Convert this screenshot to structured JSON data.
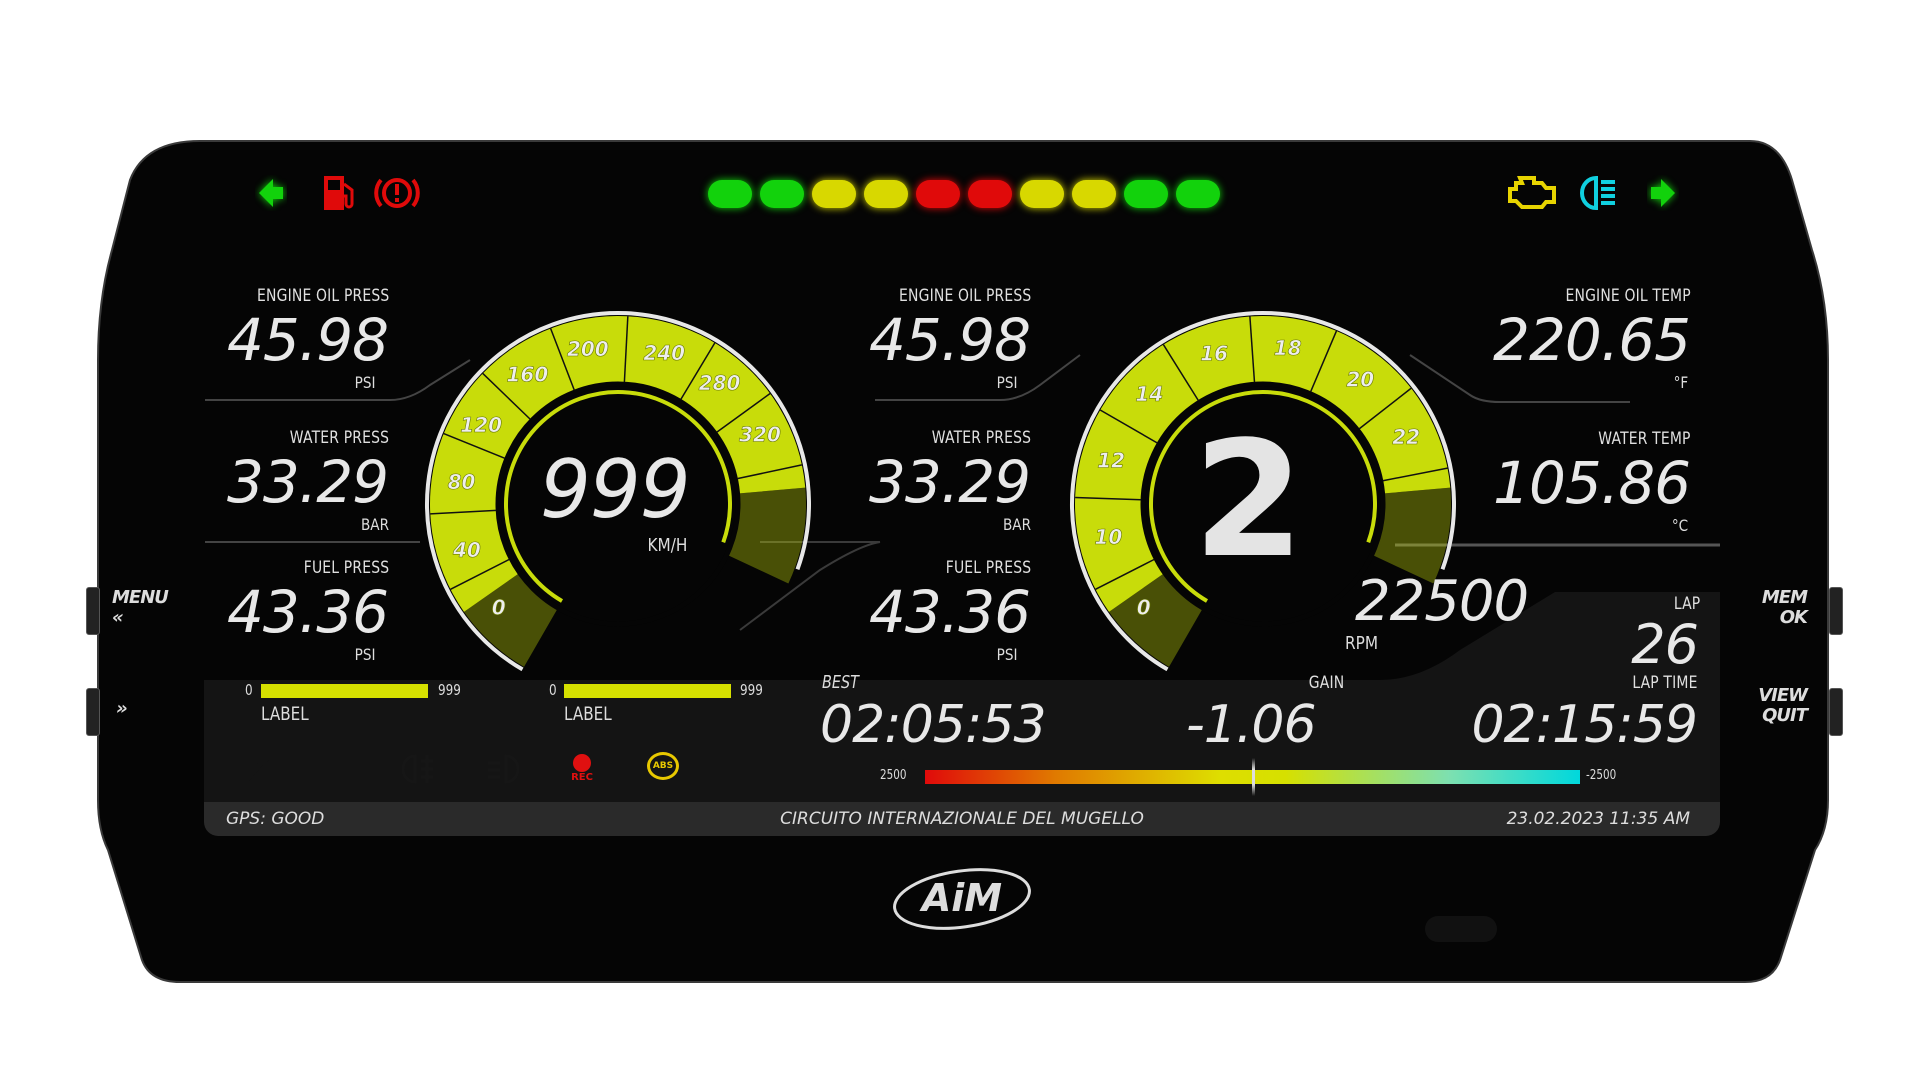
{
  "top_icons": {
    "left": [
      "turn-left-arrow-icon",
      "low-fuel-icon",
      "brake-warning-icon"
    ],
    "right": [
      "check-engine-icon",
      "high-beam-icon",
      "turn-right-arrow-icon"
    ]
  },
  "shift_lights": [
    "#12d20c",
    "#12d20c",
    "#d8d800",
    "#d8d800",
    "#e00a0a",
    "#e00a0a",
    "#d8d800",
    "#d8d800",
    "#12d20c",
    "#12d20c"
  ],
  "left_column": [
    {
      "label": "ENGINE OIL PRESS",
      "value": "45.98",
      "unit": "PSI"
    },
    {
      "label": "WATER PRESS",
      "value": "33.29",
      "unit": "BAR"
    },
    {
      "label": "FUEL PRESS",
      "value": "43.36",
      "unit": "PSI"
    }
  ],
  "center_column": [
    {
      "label": "ENGINE OIL PRESS",
      "value": "45.98",
      "unit": "PSI"
    },
    {
      "label": "WATER PRESS",
      "value": "33.29",
      "unit": "BAR"
    },
    {
      "label": "FUEL PRESS",
      "value": "43.36",
      "unit": "PSI"
    }
  ],
  "right_column": [
    {
      "label": "ENGINE OIL TEMP",
      "value": "220.65",
      "unit": "°F"
    },
    {
      "label": "WATER TEMP",
      "value": "105.86",
      "unit": "°C"
    }
  ],
  "speed_gauge": {
    "value": "999",
    "unit": "KM/H",
    "ticks": [
      "0",
      "40",
      "80",
      "120",
      "160",
      "200",
      "240",
      "280",
      "320"
    ]
  },
  "gear_gauge": {
    "value": "2",
    "ticks": [
      "0",
      "10",
      "12",
      "14",
      "16",
      "18",
      "20",
      "22"
    ]
  },
  "rpm": {
    "value": "22500",
    "unit": "RPM"
  },
  "lap": {
    "label": "LAP",
    "value": "26"
  },
  "bars": [
    {
      "min": "0",
      "max": "999",
      "label": "LABEL",
      "fill": 1.0
    },
    {
      "min": "0",
      "max": "999",
      "label": "LABEL",
      "fill": 1.0
    }
  ],
  "best": {
    "label": "BEST",
    "value": "02:05:53"
  },
  "gain": {
    "label": "GAIN",
    "value": "-1.06"
  },
  "lap_time": {
    "label": "LAP TIME",
    "value": "02:15:59"
  },
  "gain_bar": {
    "min_label": "2500",
    "max_label": "-2500",
    "position": 0.5
  },
  "bottom_icons": [
    {
      "name": "wrench-icon",
      "active": false
    },
    {
      "name": "hazard-icon",
      "active": false
    },
    {
      "name": "fog-light-icon",
      "active": false
    },
    {
      "name": "low-beam-icon",
      "active": false
    },
    {
      "name": "rec-icon",
      "label": "REC",
      "active": true,
      "color": "#e01010"
    },
    {
      "name": "abs-icon",
      "label": "ABS",
      "active": true,
      "color": "#e8c800"
    },
    {
      "name": "fuel-icon",
      "active": false
    }
  ],
  "status": {
    "gps": "GPS: GOOD",
    "track": "CIRCUITO INTERNAZIONALE DEL MUGELLO",
    "datetime": "23.02.2023 11:35 AM"
  },
  "buttons": {
    "menu": "MENU",
    "prev": "«",
    "next": "»",
    "mem": "MEM",
    "ok": "OK",
    "view": "VIEW",
    "quit": "QUIT"
  },
  "brand": "AiM",
  "colors": {
    "gauge": "#c8dc0a",
    "bezel": "#050505",
    "accent_green": "#12d20c",
    "accent_red": "#e00a0a",
    "accent_yellow": "#d8d800",
    "accent_cyan": "#10d0e0"
  }
}
